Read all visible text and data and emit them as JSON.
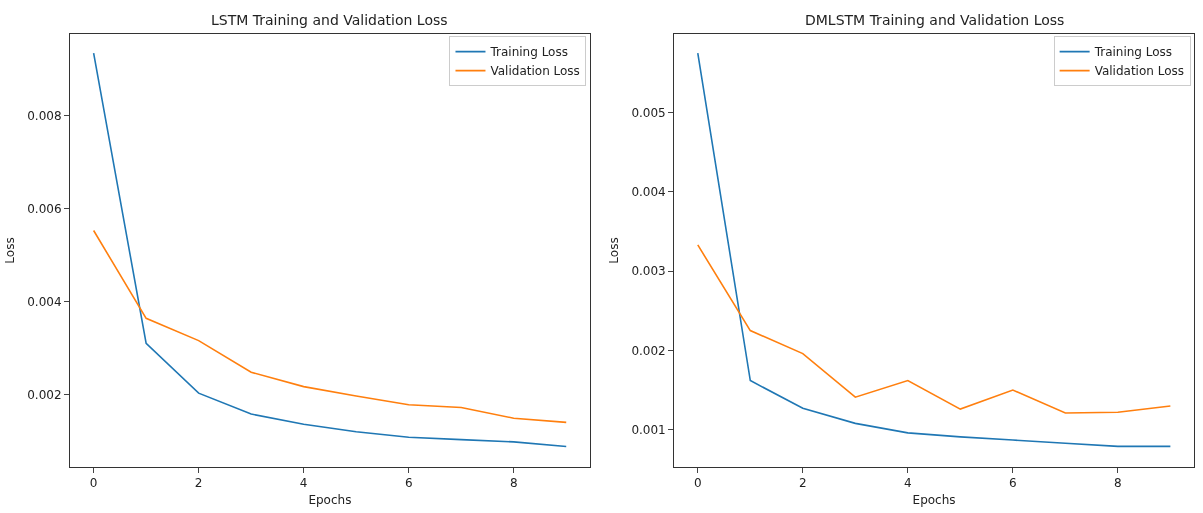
{
  "chart_data": [
    {
      "type": "line",
      "title": "LSTM Training and Validation Loss",
      "xlabel": "Epochs",
      "ylabel": "Loss",
      "x": [
        0,
        1,
        2,
        3,
        4,
        5,
        6,
        7,
        8,
        9
      ],
      "series": [
        {
          "name": "Training Loss",
          "color": "#1f77b4",
          "values": [
            0.00935,
            0.0031,
            0.00203,
            0.00158,
            0.00136,
            0.0012,
            0.00108,
            0.00103,
            0.00098,
            0.00088
          ]
        },
        {
          "name": "Validation Loss",
          "color": "#ff7f0e",
          "values": [
            0.00553,
            0.00364,
            0.00316,
            0.00248,
            0.00217,
            0.00197,
            0.00178,
            0.00172,
            0.00149,
            0.0014
          ]
        }
      ],
      "xlim": [
        -0.45,
        9.45
      ],
      "xticks": [
        0,
        2,
        4,
        6,
        8
      ],
      "ylim": [
        0.00044,
        0.00976
      ],
      "yticks": [
        0.002,
        0.004,
        0.006,
        0.008
      ],
      "grid": false,
      "legend": "top right",
      "line_style": "solid"
    },
    {
      "type": "line",
      "title": "DMLSTM Training and Validation Loss",
      "xlabel": "Epochs",
      "ylabel": "Loss",
      "x": [
        0,
        1,
        2,
        3,
        4,
        5,
        6,
        7,
        8,
        9
      ],
      "series": [
        {
          "name": "Training Loss",
          "color": "#1f77b4",
          "values": [
            0.00575,
            0.00162,
            0.00127,
            0.00108,
            0.00096,
            0.00091,
            0.00087,
            0.00083,
            0.00079,
            0.00079
          ]
        },
        {
          "name": "Validation Loss",
          "color": "#ff7f0e",
          "values": [
            0.00333,
            0.00225,
            0.00196,
            0.00141,
            0.00162,
            0.00126,
            0.0015,
            0.00121,
            0.00122,
            0.0013
          ]
        }
      ],
      "xlim": [
        -0.45,
        9.45
      ],
      "xticks": [
        0,
        2,
        4,
        6,
        8
      ],
      "ylim": [
        0.00053,
        0.00599
      ],
      "yticks": [
        0.001,
        0.002,
        0.003,
        0.004,
        0.005
      ],
      "grid": false,
      "legend": "top right",
      "line_style": "solid"
    }
  ]
}
